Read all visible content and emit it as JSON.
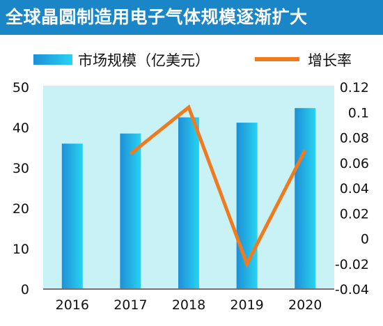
{
  "title": "全球晶圆制造用电子气体规模逐渐扩大",
  "colors": {
    "title_bg": "#1a86c8",
    "plot_bg": "#c8f2f5",
    "bar_dark": "#1f8fd6",
    "bar_light": "#27d3f2",
    "line": "#f07a1e"
  },
  "chart_data": {
    "type": "bar",
    "categories": [
      "2016",
      "2017",
      "2018",
      "2019",
      "2020"
    ],
    "series": [
      {
        "name": "市场规模（亿美元）",
        "type": "bar",
        "axis": "left",
        "values": [
          36.0,
          38.5,
          42.5,
          41.2,
          44.8
        ]
      },
      {
        "name": "增长率",
        "type": "line",
        "axis": "right",
        "values": [
          null,
          0.067,
          0.104,
          -0.02,
          0.07
        ]
      }
    ],
    "y_left": {
      "lim": [
        0,
        50
      ],
      "ticks": [
        "0",
        "10",
        "20",
        "30",
        "40",
        "50"
      ]
    },
    "y_right": {
      "lim": [
        -0.04,
        0.12
      ],
      "ticks": [
        "-0.04",
        "-0.02",
        "0",
        "0.02",
        "0.04",
        "0.06",
        "0.08",
        "0.1",
        "0.12"
      ]
    },
    "legend": "top",
    "grid": false
  }
}
